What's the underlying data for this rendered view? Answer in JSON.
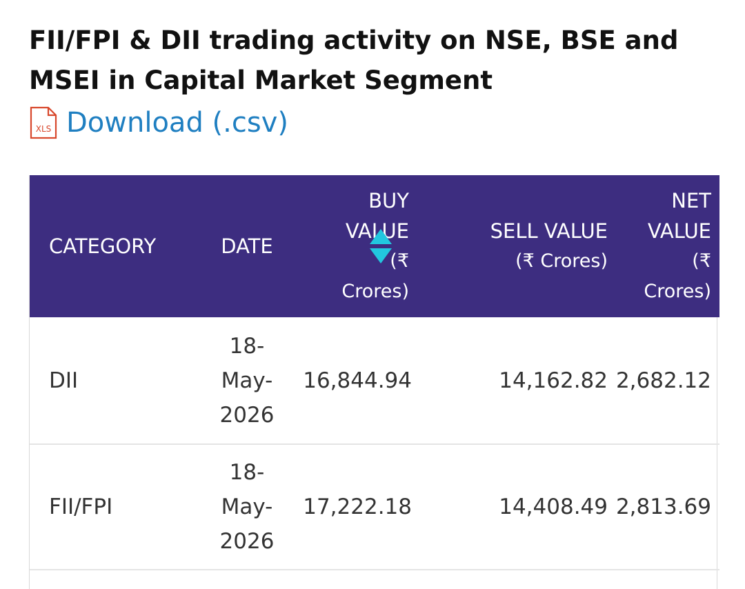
{
  "page": {
    "title": "FII/FPI & DII trading activity on NSE, BSE and MSEI in Capital Market Segment",
    "download_label": "Download (.csv)",
    "download_icon": "xls-file-icon",
    "download_icon_text": "XLS"
  },
  "colors": {
    "header_bg": "#3d2d80",
    "link": "#1f7fc1",
    "sort_arrow": "#22c7df",
    "icon_red": "#d8472b"
  },
  "table": {
    "columns": [
      {
        "key": "category",
        "label": "CATEGORY",
        "unit": ""
      },
      {
        "key": "date",
        "label": "DATE",
        "unit": ""
      },
      {
        "key": "buy",
        "label_line1": "BUY",
        "label_line2": "VALUE",
        "unit_line1": "(₹",
        "unit_line2": "Crores)",
        "sort_icon": "sort-both-icon"
      },
      {
        "key": "sell",
        "label": "SELL VALUE",
        "unit": "(₹ Crores)"
      },
      {
        "key": "net",
        "label_line1": "NET",
        "label_line2": "VALUE",
        "unit_line1": "(₹",
        "unit_line2": "Crores)"
      }
    ],
    "rows": [
      {
        "category": "DII",
        "date_line1": "18-",
        "date_line2": "May-",
        "date_line3": "2026",
        "buy": "16,844.94",
        "sell": "14,162.82",
        "net": "2,682.12"
      },
      {
        "category": "FII/FPI",
        "date_line1": "18-",
        "date_line2": "May-",
        "date_line3": "2026",
        "buy": "17,222.18",
        "sell": "14,408.49",
        "net": "2,813.69"
      }
    ]
  }
}
